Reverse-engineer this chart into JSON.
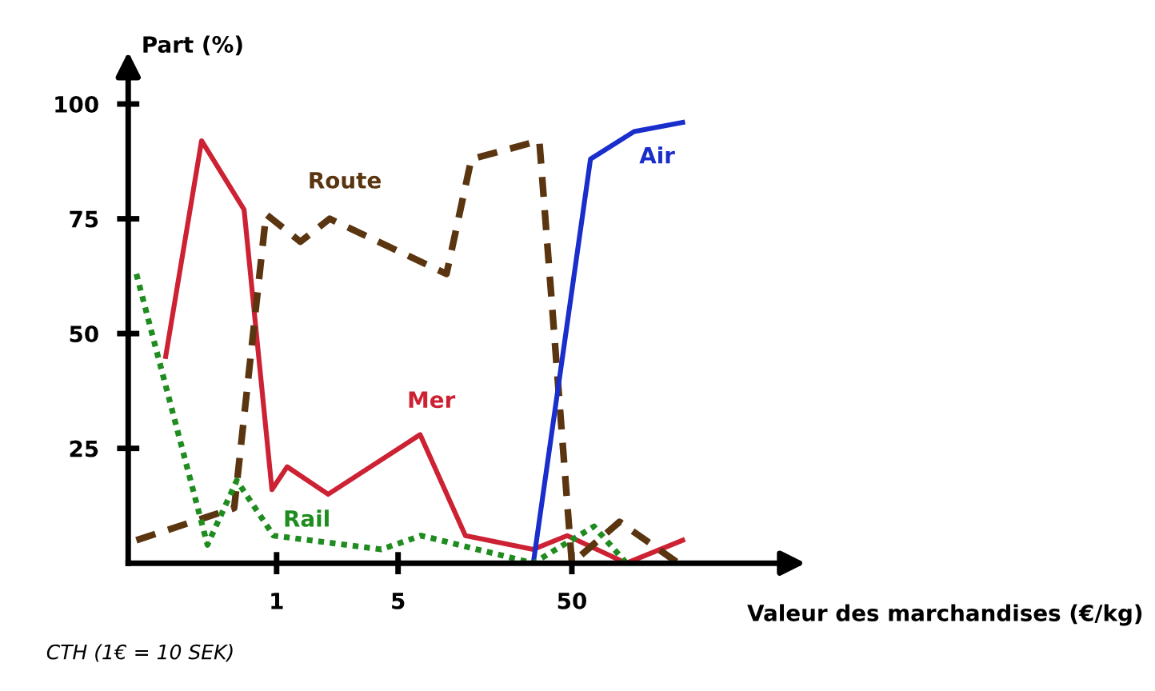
{
  "chart_data": {
    "type": "line",
    "xlabel": "Valeur des marchandises (€/kg)",
    "ylabel": "Part (%)",
    "log": "x",
    "xlim": [
      0.14,
      900
    ],
    "xticks": [
      1,
      5,
      50
    ],
    "ylim": [
      0,
      107
    ],
    "yticks": [
      25,
      50,
      75,
      100
    ],
    "grid": false,
    "legend": false,
    "annotations": [
      "CTH (1€ = 10 SEK)"
    ],
    "series": [
      {
        "name": "Mer",
        "color": "#cc2233",
        "line_style": "solid",
        "x": [
          0.23,
          0.37,
          0.65,
          0.94,
          1.15,
          1.98,
          6.7,
          12.2,
          30,
          47,
          103,
          217
        ],
        "values": [
          45,
          92,
          77,
          16,
          21,
          15,
          28,
          6,
          3,
          6,
          0,
          5
        ]
      },
      {
        "name": "Route",
        "color": "#5a3510",
        "line_style": "dashed",
        "x": [
          0.156,
          0.57,
          0.87,
          1.37,
          2.02,
          9.5,
          13.2,
          32.5,
          50,
          94,
          205
        ],
        "values": [
          5,
          12,
          76,
          70,
          75,
          63,
          88,
          92,
          0,
          9,
          0
        ]
      },
      {
        "name": "Air",
        "color": "#1a2ecc",
        "line_style": "solid",
        "x": [
          30,
          64,
          114,
          217
        ],
        "values": [
          0,
          88,
          94,
          96
        ]
      },
      {
        "name": "Rail",
        "color": "#1e8c1e",
        "line_style": "dotted",
        "x": [
          0.156,
          0.4,
          0.59,
          0.96,
          4.0,
          6.8,
          30,
          67,
          103
        ],
        "values": [
          63,
          4,
          18,
          6,
          3,
          6,
          0,
          8,
          0
        ]
      }
    ]
  }
}
